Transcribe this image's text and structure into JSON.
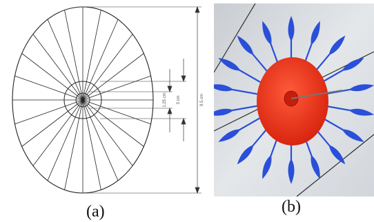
{
  "figure_a": {
    "caption": "(a)",
    "dimensions": [
      {
        "label": "1.25 cm"
      },
      {
        "label": "3 cm"
      },
      {
        "label": "9.5 cm"
      }
    ],
    "spoke_count": 24
  },
  "figure_b": {
    "caption": "(b)",
    "colors": {
      "hub": "#e8341c",
      "blades": "#2a4fd8",
      "background": "#d9dde2"
    }
  }
}
